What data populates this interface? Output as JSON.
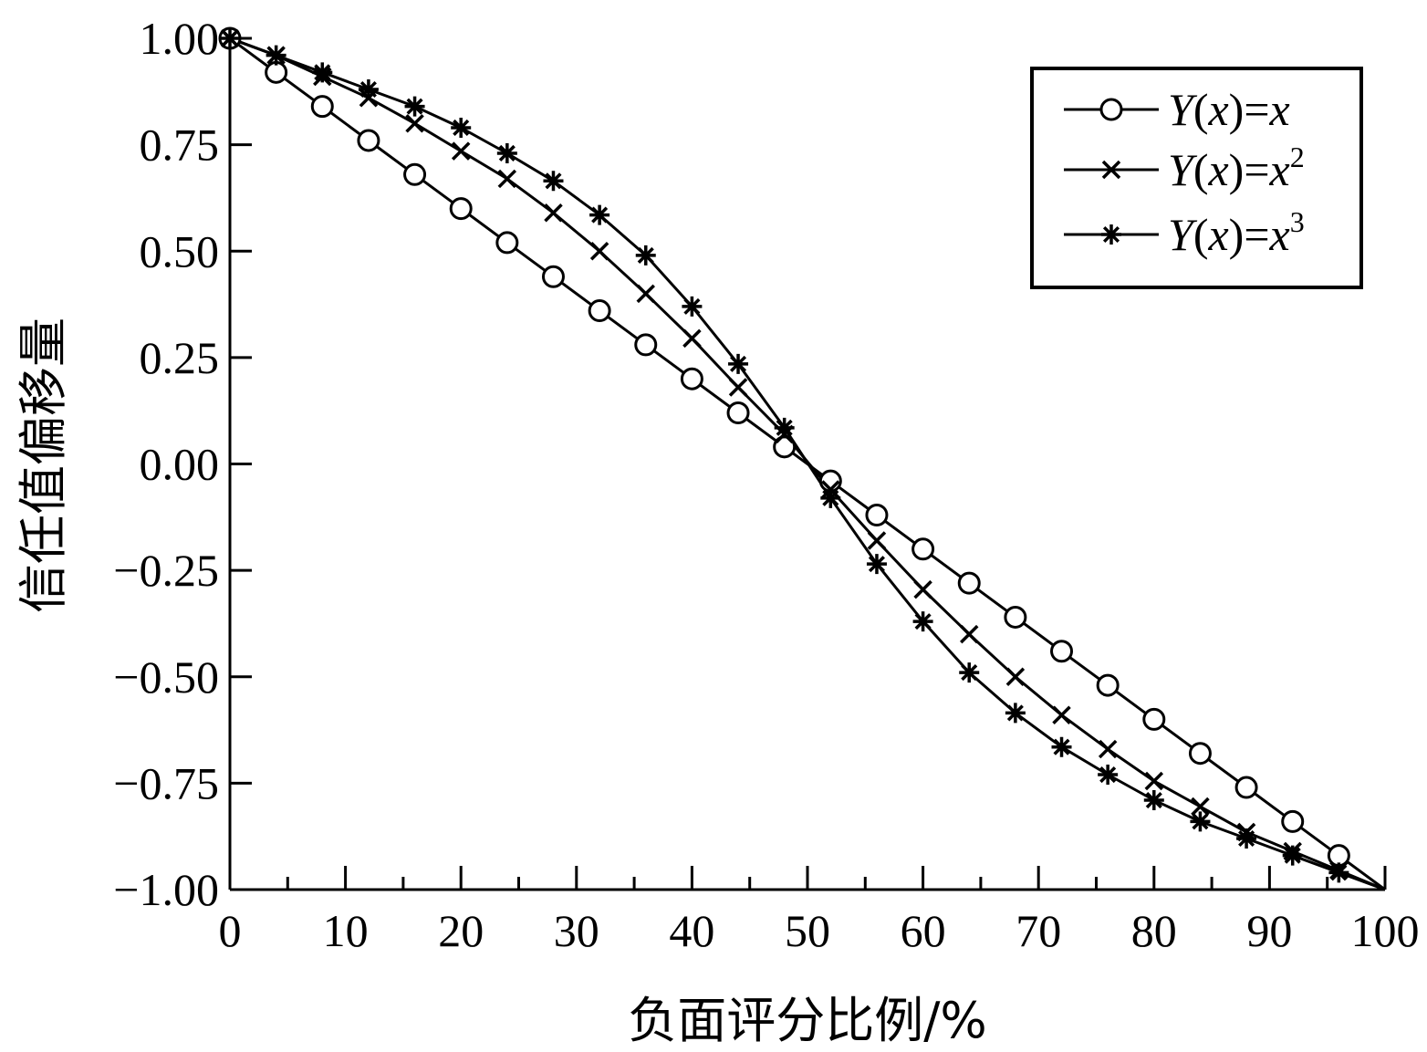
{
  "chart_data": {
    "type": "line",
    "title": "",
    "xlabel": "负面评分比例/%",
    "ylabel": "信任值偏移量",
    "xlim": [
      0,
      100
    ],
    "ylim": [
      -1.0,
      1.0
    ],
    "xticks": [
      0,
      10,
      20,
      30,
      40,
      50,
      60,
      70,
      80,
      90,
      100
    ],
    "xtick_labels": [
      "0",
      "10",
      "20",
      "30",
      "40",
      "50",
      "60",
      "70",
      "80",
      "90",
      "100"
    ],
    "yticks": [
      1.0,
      0.75,
      0.5,
      0.25,
      0.0,
      -0.25,
      -0.5,
      -0.75,
      -1.0
    ],
    "ytick_labels": [
      "1.00",
      "0.75",
      "0.50",
      "0.25",
      "0.00",
      "−0.25",
      "−0.50",
      "−0.75",
      "−1.00"
    ],
    "grid": false,
    "legend": "top-right",
    "series": [
      {
        "name": "Y(x)=x",
        "legend_base": "Y(x)=x",
        "legend_exp": "",
        "marker": "circle",
        "x": [
          0,
          4,
          8,
          12,
          16,
          20,
          24,
          28,
          32,
          36,
          40,
          44,
          48,
          52,
          56,
          60,
          64,
          68,
          72,
          76,
          80,
          84,
          88,
          92,
          96,
          100
        ],
        "y": [
          1.0,
          0.92,
          0.84,
          0.76,
          0.68,
          0.6,
          0.52,
          0.44,
          0.36,
          0.28,
          0.2,
          0.12,
          0.04,
          -0.04,
          -0.12,
          -0.2,
          -0.28,
          -0.36,
          -0.44,
          -0.52,
          -0.6,
          -0.68,
          -0.76,
          -0.84,
          -0.92,
          -1.0
        ]
      },
      {
        "name": "Y(x)=x2",
        "legend_base": "Y(x)=x",
        "legend_exp": "2",
        "marker": "x",
        "x": [
          0,
          4,
          8,
          12,
          16,
          20,
          24,
          28,
          32,
          36,
          40,
          44,
          48,
          52,
          56,
          60,
          64,
          68,
          72,
          76,
          80,
          84,
          88,
          92,
          96,
          100
        ],
        "y": [
          1.0,
          0.96,
          0.91,
          0.86,
          0.8,
          0.735,
          0.67,
          0.59,
          0.5,
          0.4,
          0.295,
          0.18,
          0.07,
          -0.06,
          -0.18,
          -0.295,
          -0.4,
          -0.5,
          -0.59,
          -0.67,
          -0.745,
          -0.805,
          -0.865,
          -0.91,
          -0.955,
          -1.0
        ]
      },
      {
        "name": "Y(x)=x3",
        "legend_base": "Y(x)=x",
        "legend_exp": "3",
        "marker": "asterisk",
        "x": [
          0,
          4,
          8,
          12,
          16,
          20,
          24,
          28,
          32,
          36,
          40,
          44,
          48,
          52,
          56,
          60,
          64,
          68,
          72,
          76,
          80,
          84,
          88,
          92,
          96,
          100
        ],
        "y": [
          1.0,
          0.96,
          0.92,
          0.88,
          0.84,
          0.79,
          0.73,
          0.665,
          0.585,
          0.49,
          0.37,
          0.235,
          0.085,
          -0.08,
          -0.235,
          -0.37,
          -0.49,
          -0.585,
          -0.665,
          -0.73,
          -0.79,
          -0.84,
          -0.88,
          -0.92,
          -0.96,
          -1.0
        ]
      }
    ]
  }
}
